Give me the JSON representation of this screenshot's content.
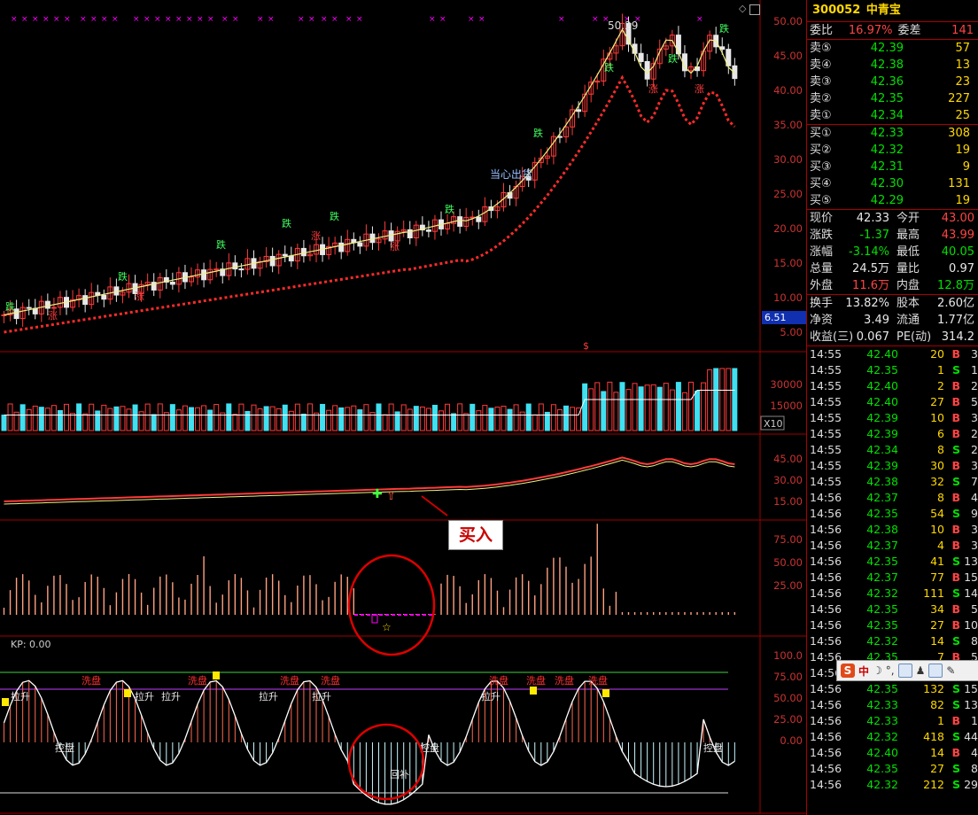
{
  "header": {
    "code": "300052",
    "name": "中青宝"
  },
  "order_book": {
    "ratio": {
      "l1": "委比",
      "v1": "16.97%",
      "l2": "委差",
      "v2": "141"
    },
    "asks": [
      {
        "label": "卖⑤",
        "price": "42.39",
        "vol": "57"
      },
      {
        "label": "卖④",
        "price": "42.38",
        "vol": "13"
      },
      {
        "label": "卖③",
        "price": "42.36",
        "vol": "23"
      },
      {
        "label": "卖②",
        "price": "42.35",
        "vol": "227"
      },
      {
        "label": "卖①",
        "price": "42.34",
        "vol": "25"
      }
    ],
    "bids": [
      {
        "label": "买①",
        "price": "42.33",
        "vol": "308"
      },
      {
        "label": "买②",
        "price": "42.32",
        "vol": "19"
      },
      {
        "label": "买③",
        "price": "42.31",
        "vol": "9"
      },
      {
        "label": "买④",
        "price": "42.30",
        "vol": "131"
      },
      {
        "label": "买⑤",
        "price": "42.29",
        "vol": "19"
      }
    ]
  },
  "quote": [
    {
      "l1": "现价",
      "v1": "42.33",
      "l2": "今开",
      "v2": "43.00"
    },
    {
      "l1": "涨跌",
      "v1": "-1.37",
      "l2": "最高",
      "v2": "43.99"
    },
    {
      "l1": "涨幅",
      "v1": "-3.14%",
      "l2": "最低",
      "v2": "40.05"
    },
    {
      "l1": "总量",
      "v1": "24.5万",
      "l2": "量比",
      "v2": "0.97"
    },
    {
      "l1": "外盘",
      "v1": "11.6万",
      "l2": "内盘",
      "v2": "12.8万"
    }
  ],
  "fundamentals": [
    {
      "l1": "换手",
      "v1": "13.82%",
      "l2": "股本",
      "v2": "2.60亿"
    },
    {
      "l1": "净资",
      "v1": "3.49",
      "l2": "流通",
      "v2": "1.77亿"
    },
    {
      "l1": "收益(三)",
      "v1": "0.067",
      "l2": "PE(动)",
      "v2": "314.2"
    }
  ],
  "ticks": [
    {
      "time": "14:55",
      "price": "42.40",
      "vol": "20",
      "dir": "B",
      "n": "3"
    },
    {
      "time": "14:55",
      "price": "42.35",
      "vol": "1",
      "dir": "S",
      "n": "1"
    },
    {
      "time": "14:55",
      "price": "42.40",
      "vol": "2",
      "dir": "B",
      "n": "2"
    },
    {
      "time": "14:55",
      "price": "42.40",
      "vol": "27",
      "dir": "B",
      "n": "5"
    },
    {
      "time": "14:55",
      "price": "42.39",
      "vol": "10",
      "dir": "B",
      "n": "3"
    },
    {
      "time": "14:55",
      "price": "42.39",
      "vol": "6",
      "dir": "B",
      "n": "2"
    },
    {
      "time": "14:55",
      "price": "42.34",
      "vol": "8",
      "dir": "S",
      "n": "2"
    },
    {
      "time": "14:55",
      "price": "42.39",
      "vol": "30",
      "dir": "B",
      "n": "3"
    },
    {
      "time": "14:55",
      "price": "42.38",
      "vol": "32",
      "dir": "S",
      "n": "7"
    },
    {
      "time": "14:56",
      "price": "42.37",
      "vol": "8",
      "dir": "B",
      "n": "4"
    },
    {
      "time": "14:56",
      "price": "42.35",
      "vol": "54",
      "dir": "S",
      "n": "9"
    },
    {
      "time": "14:56",
      "price": "42.38",
      "vol": "10",
      "dir": "B",
      "n": "3"
    },
    {
      "time": "14:56",
      "price": "42.37",
      "vol": "4",
      "dir": "B",
      "n": "3"
    },
    {
      "time": "14:56",
      "price": "42.35",
      "vol": "41",
      "dir": "S",
      "n": "13"
    },
    {
      "time": "14:56",
      "price": "42.37",
      "vol": "77",
      "dir": "B",
      "n": "15"
    },
    {
      "time": "14:56",
      "price": "42.32",
      "vol": "111",
      "dir": "S",
      "n": "14"
    },
    {
      "time": "14:56",
      "price": "42.35",
      "vol": "34",
      "dir": "B",
      "n": "5"
    },
    {
      "time": "14:56",
      "price": "42.35",
      "vol": "27",
      "dir": "B",
      "n": "10"
    },
    {
      "time": "14:56",
      "price": "42.32",
      "vol": "14",
      "dir": "S",
      "n": "8"
    },
    {
      "time": "14:56",
      "price": "42.35",
      "vol": "7",
      "dir": "B",
      "n": "5"
    },
    {
      "time": "14:56",
      "price": "42.35",
      "vol": "46",
      "dir": "B",
      "n": "8"
    },
    {
      "time": "14:56",
      "price": "42.35",
      "vol": "132",
      "dir": "S",
      "n": "15"
    },
    {
      "time": "14:56",
      "price": "42.33",
      "vol": "82",
      "dir": "S",
      "n": "13"
    },
    {
      "time": "14:56",
      "price": "42.33",
      "vol": "1",
      "dir": "B",
      "n": "1"
    },
    {
      "time": "14:56",
      "price": "42.32",
      "vol": "418",
      "dir": "S",
      "n": "44"
    },
    {
      "time": "14:56",
      "price": "42.40",
      "vol": "14",
      "dir": "B",
      "n": "4"
    },
    {
      "time": "14:56",
      "price": "42.35",
      "vol": "27",
      "dir": "S",
      "n": "8"
    },
    {
      "time": "14:56",
      "price": "42.32",
      "vol": "212",
      "dir": "S",
      "n": "29"
    }
  ],
  "chart_labels": {
    "peak": "50.29",
    "current_tag": "6.51",
    "vol_mult": "X10",
    "kp": "KP: 0.00",
    "annotation": "当心出货",
    "buy_callout": "买入",
    "rise": "涨",
    "fall": "跌",
    "pull": "拉升",
    "wash": "洗盘",
    "ctrl": "控盘",
    "fill": "回补",
    "dollar": "$"
  },
  "axes": {
    "price": [
      "50.00",
      "45.00",
      "40.00",
      "35.00",
      "30.00",
      "25.00",
      "20.00",
      "15.00",
      "10.00",
      "5.00"
    ],
    "volume": [
      "30000",
      "15000"
    ],
    "p3": [
      "45.00",
      "30.00",
      "15.00"
    ],
    "p4": [
      "75.00",
      "50.00",
      "25.00"
    ],
    "p5": [
      "100.0",
      "75.00",
      "50.00",
      "25.00",
      "0.00"
    ]
  },
  "toolbar": {
    "logo": "S",
    "lang": "中"
  },
  "colors": {
    "up": "#ff3b3b",
    "down": "#40e0f0",
    "grid": "#a00000",
    "ma": "#f0f080",
    "magenta": "#ff00ff"
  }
}
